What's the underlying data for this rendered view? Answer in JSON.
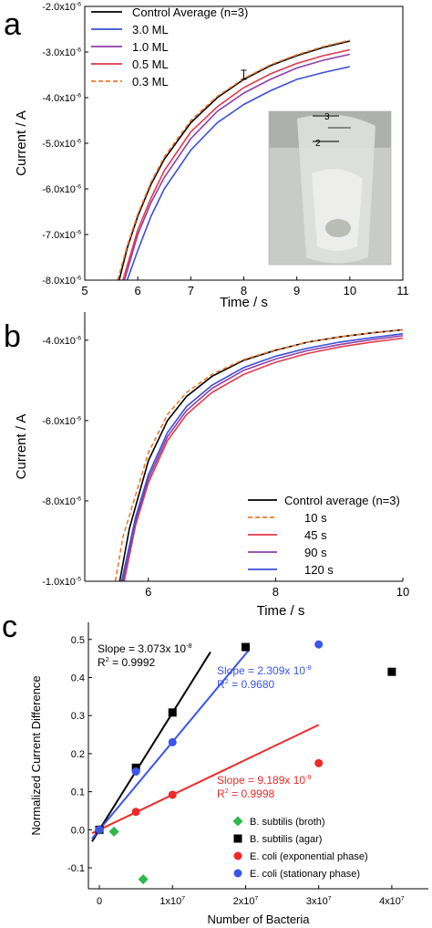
{
  "chart_data": [
    {
      "type": "line",
      "panel_label": "a",
      "xlabel": "Time / s",
      "ylabel": "Current / A",
      "xlim": [
        5,
        11
      ],
      "ylim": [
        -8e-06,
        -2e-06
      ],
      "xticks": [
        "5",
        "6",
        "7",
        "8",
        "9",
        "10",
        "11"
      ],
      "yticks": [
        "-2.0x10",
        "-3.0x10",
        "-4.0x10",
        "-5.0x10",
        "-6.0x10",
        "-7.0x10",
        "-8.0x10"
      ],
      "ytick_exp": "-6",
      "ytick_values": [
        -2e-06,
        -3e-06,
        -4e-06,
        -5e-06,
        -6e-06,
        -7e-06,
        -8e-06
      ],
      "legend_position": "top-left",
      "inset": "photo of sample tube with markings 3 and 2",
      "inset_marks": [
        "3",
        "2"
      ],
      "error_bar": {
        "x": 8.0,
        "y": -3.5e-06,
        "err": 1e-07
      },
      "series": [
        {
          "name": "Control Average (n=3)",
          "color": "#000000",
          "dash": false,
          "x": [
            5.65,
            5.8,
            6.0,
            6.25,
            6.5,
            7.0,
            7.5,
            8.0,
            8.5,
            9.0,
            9.5,
            10.0
          ],
          "y": [
            -8e-06,
            -7.3e-06,
            -6.6e-06,
            -5.9e-06,
            -5.35e-06,
            -4.55e-06,
            -4e-06,
            -3.6e-06,
            -3.3e-06,
            -3.08e-06,
            -2.9e-06,
            -2.76e-06
          ]
        },
        {
          "name": "3.0 ML",
          "color": "#3a4fd6",
          "dash": false,
          "x": [
            5.8,
            6.0,
            6.25,
            6.5,
            7.0,
            7.5,
            8.0,
            8.5,
            9.0,
            9.5,
            10.0
          ],
          "y": [
            -8e-06,
            -7.35e-06,
            -6.6e-06,
            -6e-06,
            -5.15e-06,
            -4.55e-06,
            -4.15e-06,
            -3.85e-06,
            -3.6e-06,
            -3.45e-06,
            -3.32e-06
          ]
        },
        {
          "name": "1.0 ML",
          "color": "#8e3fa8",
          "dash": false,
          "x": [
            5.75,
            6.0,
            6.25,
            6.5,
            7.0,
            7.5,
            8.0,
            8.5,
            9.0,
            9.5,
            10.0
          ],
          "y": [
            -8e-06,
            -7e-06,
            -6.3e-06,
            -5.75e-06,
            -4.9e-06,
            -4.3e-06,
            -3.9e-06,
            -3.6e-06,
            -3.35e-06,
            -3.18e-06,
            -3.05e-06
          ]
        },
        {
          "name": "0.5 ML",
          "color": "#e23a4a",
          "dash": false,
          "x": [
            5.72,
            6.0,
            6.25,
            6.5,
            7.0,
            7.5,
            8.0,
            8.5,
            9.0,
            9.5,
            10.0
          ],
          "y": [
            -8e-06,
            -6.9e-06,
            -6.2e-06,
            -5.6e-06,
            -4.75e-06,
            -4.2e-06,
            -3.78e-06,
            -3.48e-06,
            -3.25e-06,
            -3.08e-06,
            -2.95e-06
          ]
        },
        {
          "name": "0.3 ML",
          "color": "#f07a2c",
          "dash": true,
          "x": [
            5.62,
            5.8,
            6.0,
            6.25,
            6.5,
            7.0,
            7.5,
            8.0,
            8.5,
            9.0,
            9.5,
            10.0
          ],
          "y": [
            -8e-06,
            -7.25e-06,
            -6.55e-06,
            -5.85e-06,
            -5.3e-06,
            -4.5e-06,
            -3.97e-06,
            -3.58e-06,
            -3.28e-06,
            -3.06e-06,
            -2.88e-06,
            -2.74e-06
          ]
        }
      ]
    },
    {
      "type": "line",
      "panel_label": "b",
      "xlabel": "Time / s",
      "ylabel": "Current / A",
      "xlim": [
        5,
        10
      ],
      "ylim": [
        -1e-05,
        -3.3e-06
      ],
      "xticks": [
        "6",
        "8",
        "10"
      ],
      "xtick_values": [
        6,
        8,
        10
      ],
      "yticks": [
        "-4.0x10",
        "-6.0x10",
        "-8.0x10",
        "-1.0x10"
      ],
      "ytick_exps": [
        "-6",
        "-6",
        "-6",
        "-5"
      ],
      "ytick_values": [
        -4e-06,
        -6e-06,
        -8e-06,
        -1e-05
      ],
      "legend_position": "bottom-right",
      "series": [
        {
          "name": "Control average (n=3)",
          "color": "#000000",
          "dash": false,
          "x": [
            5.55,
            5.7,
            6.0,
            6.3,
            6.6,
            7.0,
            7.5,
            8.0,
            8.5,
            9.0,
            9.5,
            10.0
          ],
          "y": [
            -1e-05,
            -8.7e-06,
            -7e-06,
            -6e-06,
            -5.4e-06,
            -4.9e-06,
            -4.5e-06,
            -4.25e-06,
            -4.05e-06,
            -3.92e-06,
            -3.82e-06,
            -3.74e-06
          ]
        },
        {
          "name": "10 s",
          "color": "#f07a2c",
          "dash": true,
          "x": [
            5.48,
            5.6,
            6.0,
            6.3,
            6.6,
            7.0,
            7.5,
            8.0,
            8.5,
            9.0,
            9.5,
            10.0
          ],
          "y": [
            -1e-05,
            -8.9e-06,
            -6.8e-06,
            -5.85e-06,
            -5.3e-06,
            -4.85e-06,
            -4.48e-06,
            -4.24e-06,
            -4.05e-06,
            -3.92e-06,
            -3.82e-06,
            -3.74e-06
          ]
        },
        {
          "name": "45 s",
          "color": "#e23a4a",
          "dash": false,
          "x": [
            5.62,
            5.8,
            6.0,
            6.3,
            6.6,
            7.0,
            7.5,
            8.0,
            8.5,
            9.0,
            9.5,
            10.0
          ],
          "y": [
            -1e-05,
            -8.6e-06,
            -7.55e-06,
            -6.5e-06,
            -5.85e-06,
            -5.3e-06,
            -4.85e-06,
            -4.55e-06,
            -4.33e-06,
            -4.17e-06,
            -4.05e-06,
            -3.95e-06
          ]
        },
        {
          "name": "90 s",
          "color": "#8e3fa8",
          "dash": false,
          "x": [
            5.6,
            5.8,
            6.0,
            6.3,
            6.6,
            7.0,
            7.5,
            8.0,
            8.5,
            9.0,
            9.5,
            10.0
          ],
          "y": [
            -1e-05,
            -8.5e-06,
            -7.45e-06,
            -6.4e-06,
            -5.75e-06,
            -5.2e-06,
            -4.75e-06,
            -4.47e-06,
            -4.26e-06,
            -4.11e-06,
            -3.99e-06,
            -3.89e-06
          ]
        },
        {
          "name": "120 s",
          "color": "#3a4fd6",
          "dash": false,
          "x": [
            5.58,
            5.8,
            6.0,
            6.3,
            6.6,
            7.0,
            7.5,
            8.0,
            8.5,
            9.0,
            9.5,
            10.0
          ],
          "y": [
            -1e-05,
            -8.4e-06,
            -7.35e-06,
            -6.3e-06,
            -5.65e-06,
            -5.12e-06,
            -4.68e-06,
            -4.4e-06,
            -4.2e-06,
            -4.05e-06,
            -3.94e-06,
            -3.84e-06
          ]
        }
      ]
    },
    {
      "type": "scatter",
      "panel_label": "c",
      "xlabel": "Number of Bacteria",
      "ylabel": "Normalized Current Difference",
      "xlim": [
        -1500000.0,
        45000000.0
      ],
      "ylim": [
        -0.155,
        0.545
      ],
      "xticks": [
        "0",
        "1x10",
        "2x10",
        "3x10",
        "4x10"
      ],
      "xtick_exp": "7",
      "xtick_values": [
        0,
        10000000.0,
        20000000.0,
        30000000.0,
        40000000.0
      ],
      "yticks": [
        "-0.1",
        "0.0",
        "0.1",
        "0.2",
        "0.3",
        "0.4",
        "0.5"
      ],
      "ytick_values": [
        -0.1,
        0.0,
        0.1,
        0.2,
        0.3,
        0.4,
        0.5
      ],
      "legend_position": "bottom-right",
      "series": [
        {
          "name": "B. subtilis (broth)",
          "color": "#2db84a",
          "marker": "diamond",
          "x": [
            0,
            2000000.0,
            6000000.0
          ],
          "y": [
            0.0,
            -0.005,
            -0.13
          ]
        },
        {
          "name": "B. subtilis (agar)",
          "color": "#000000",
          "marker": "square",
          "x": [
            0,
            5000000.0,
            10000000.0,
            20000000.0,
            40000000.0
          ],
          "y": [
            0.0,
            0.163,
            0.308,
            0.48,
            0.415
          ]
        },
        {
          "name": "E. coli (exponential phase)",
          "color": "#ee2a2a",
          "marker": "circle",
          "x": [
            0,
            5000000.0,
            10000000.0,
            30000000.0
          ],
          "y": [
            0.0,
            0.047,
            0.092,
            0.175
          ]
        },
        {
          "name": "E. coli (stationary phase)",
          "color": "#3b55e6",
          "marker": "circle",
          "x": [
            0,
            5000000.0,
            10000000.0,
            30000000.0
          ],
          "y": [
            0.0,
            0.153,
            0.23,
            0.487
          ]
        }
      ],
      "fits": [
        {
          "color": "#000000",
          "x": [
            -1000000.0,
            15200000.0
          ],
          "slope": 3.073e-08,
          "intercept": 0.0
        },
        {
          "color": "#3b55e6",
          "x": [
            -1000000.0,
            20500000.0
          ],
          "slope": 2.309e-08,
          "intercept": 0.0
        },
        {
          "color": "#ee2a2a",
          "x": [
            -1000000.0,
            30000000.0
          ],
          "slope": 9.189e-09,
          "intercept": 0.0
        }
      ],
      "annotations": [
        {
          "line1": "Slope = 3.073x 10",
          "line1_exp": "-8",
          "line2": "R",
          "line2_exp": "2",
          "line2_rest": " = 0.9992",
          "color": "#000000"
        },
        {
          "line1": "Slope = 2.309x 10",
          "line1_exp": "-8",
          "line2": "R",
          "line2_exp": "2",
          "line2_rest": " = 0.9680",
          "color": "#3b55e6"
        },
        {
          "line1": "Slope = 9.189x 10",
          "line1_exp": "-9",
          "line2": "R",
          "line2_exp": "2",
          "line2_rest": " = 0.9998",
          "color": "#ee2a2a"
        }
      ]
    }
  ]
}
